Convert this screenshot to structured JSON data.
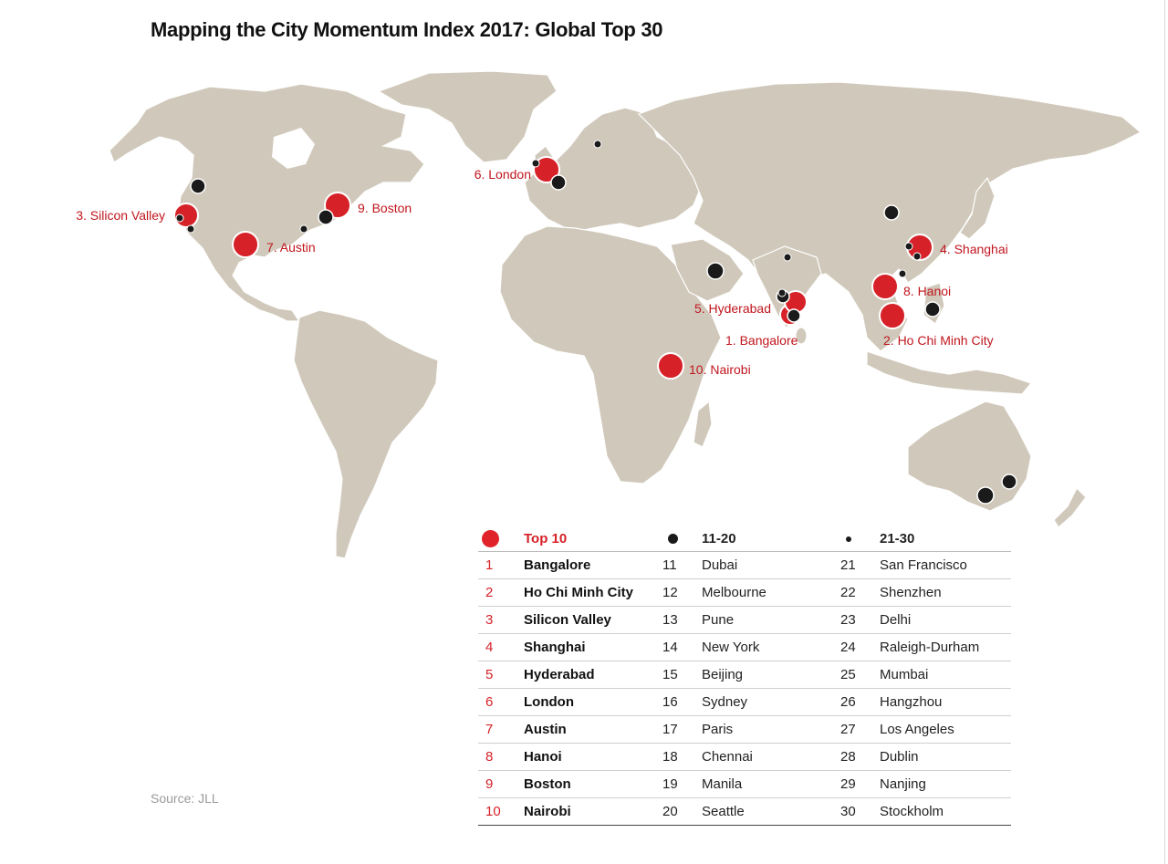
{
  "title": "Mapping the City Momentum Index 2017: Global Top 30",
  "source": "Source: JLL",
  "colors": {
    "top10": "#d62128",
    "others": "#1a1a1a",
    "land": "#d0c9bb",
    "label": "#c0161e"
  },
  "legend": {
    "top10_label": "Top 10",
    "mid_label": "11-20",
    "small_label": "21-30",
    "rows": [
      {
        "r1": "1",
        "c1": "Bangalore",
        "r2": "11",
        "c2": "Dubai",
        "r3": "21",
        "c3": "San Francisco"
      },
      {
        "r1": "2",
        "c1": "Ho Chi Minh City",
        "r2": "12",
        "c2": "Melbourne",
        "r3": "22",
        "c3": "Shenzhen"
      },
      {
        "r1": "3",
        "c1": "Silicon Valley",
        "r2": "13",
        "c2": "Pune",
        "r3": "23",
        "c3": "Delhi"
      },
      {
        "r1": "4",
        "c1": "Shanghai",
        "r2": "14",
        "c2": "New York",
        "r3": "24",
        "c3": "Raleigh-Durham"
      },
      {
        "r1": "5",
        "c1": "Hyderabad",
        "r2": "15",
        "c2": "Beijing",
        "r3": "25",
        "c3": "Mumbai"
      },
      {
        "r1": "6",
        "c1": "London",
        "r2": "16",
        "c2": "Sydney",
        "r3": "26",
        "c3": "Hangzhou"
      },
      {
        "r1": "7",
        "c1": "Austin",
        "r2": "17",
        "c2": "Paris",
        "r3": "27",
        "c3": "Los Angeles"
      },
      {
        "r1": "8",
        "c1": "Hanoi",
        "r2": "18",
        "c2": "Chennai",
        "r3": "28",
        "c3": "Dublin"
      },
      {
        "r1": "9",
        "c1": "Boston",
        "r2": "19",
        "c2": "Manila",
        "r3": "29",
        "c3": "Nanjing"
      },
      {
        "r1": "10",
        "c1": "Nairobi",
        "r2": "20",
        "c2": "Seattle",
        "r3": "30",
        "c3": "Stockholm"
      }
    ]
  },
  "map_labels": {
    "silicon_valley": "3. Silicon Valley",
    "boston": "9. Boston",
    "austin": "7. Austin",
    "london": "6. London",
    "shanghai": "4. Shanghai",
    "hyderabad": "5. Hyderabad",
    "hanoi": "8. Hanoi",
    "bangalore": "1. Bangalore",
    "hcmc": "2. Ho Chi Minh City",
    "nairobi": "10. Nairobi"
  }
}
